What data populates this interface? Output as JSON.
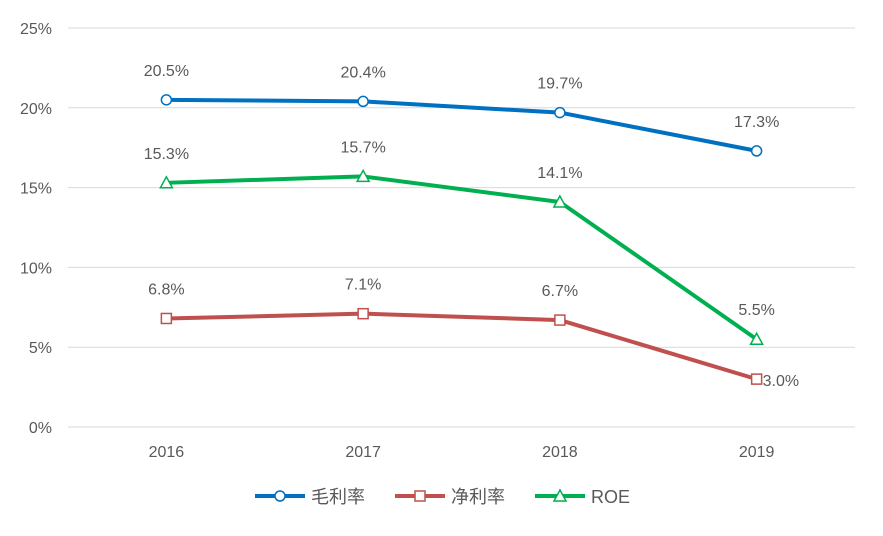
{
  "chart_data": {
    "type": "line",
    "categories": [
      "2016",
      "2017",
      "2018",
      "2019"
    ],
    "series": [
      {
        "name": "毛利率",
        "values": [
          20.5,
          20.4,
          19.7,
          17.3
        ],
        "labels": [
          "20.5%",
          "20.4%",
          "19.7%",
          "17.3%"
        ],
        "color": "#0070C0",
        "marker": "circle"
      },
      {
        "name": "净利率",
        "values": [
          6.8,
          7.1,
          6.7,
          3.0
        ],
        "labels": [
          "6.8%",
          "7.1%",
          "6.7%",
          "3.0%"
        ],
        "color": "#C0504D",
        "marker": "square"
      },
      {
        "name": "ROE",
        "values": [
          15.3,
          15.7,
          14.1,
          5.5
        ],
        "labels": [
          "15.3%",
          "15.7%",
          "14.1%",
          "5.5%"
        ],
        "color": "#00B050",
        "marker": "triangle"
      }
    ],
    "yticks": [
      "0%",
      "5%",
      "10%",
      "15%",
      "20%",
      "25%"
    ],
    "ylim": [
      0,
      25
    ],
    "grid": true,
    "legend": "bottom",
    "gridcolor": "#D9D9D9"
  }
}
